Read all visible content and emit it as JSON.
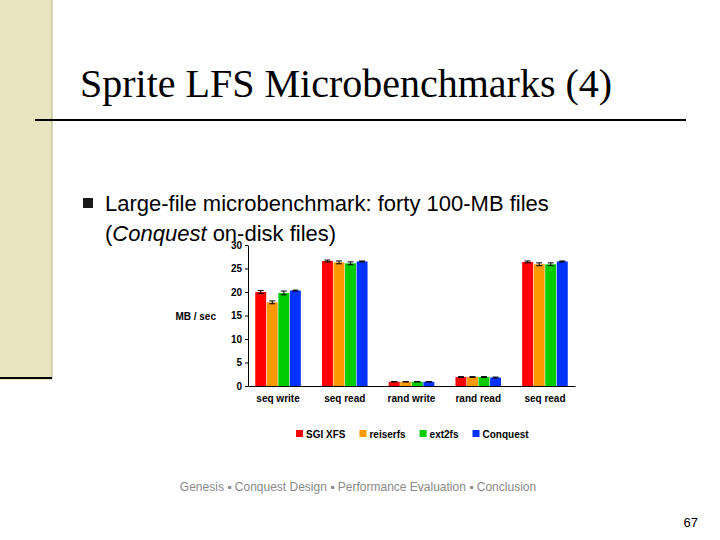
{
  "slide": {
    "title": "Sprite LFS Microbenchmarks (4)",
    "bullet": [
      [
        {
          "text": "Large-file microbenchmark:  forty 100-MB files"
        }
      ],
      [
        {
          "text": "("
        },
        {
          "text": "Conquest",
          "italic": true
        },
        {
          "text": " on-disk files)"
        }
      ]
    ],
    "footer": "Genesis ▪ Conquest Design ▪ Performance Evaluation ▪ Conclusion",
    "page": 67
  },
  "chart_data": {
    "type": "bar",
    "y_label": "MB / sec",
    "categories": [
      "seq write",
      "seq read",
      "rand write",
      "rand read",
      "seq read"
    ],
    "series": [
      {
        "name": "SGI XFS",
        "color": "#ff0000",
        "values": [
          20.0,
          26.6,
          0.9,
          1.9,
          26.4
        ],
        "errors": [
          0.3,
          0.2,
          0.05,
          0.1,
          0.2
        ]
      },
      {
        "name": "reiserfs",
        "color": "#ff9900",
        "values": [
          17.8,
          26.3,
          0.9,
          1.9,
          25.9
        ],
        "errors": [
          0.3,
          0.3,
          0.05,
          0.1,
          0.3
        ]
      },
      {
        "name": "ext2fs",
        "color": "#00cc00",
        "values": [
          19.8,
          26.1,
          0.9,
          1.9,
          25.9
        ],
        "errors": [
          0.4,
          0.3,
          0.05,
          0.1,
          0.3
        ]
      },
      {
        "name": "Conquest",
        "color": "#0033ff",
        "values": [
          20.3,
          26.5,
          0.9,
          1.8,
          26.5
        ],
        "errors": [
          0.1,
          0.1,
          0.05,
          0.1,
          0.1
        ]
      }
    ],
    "ylim": [
      0,
      30
    ],
    "yticks": [
      0,
      5,
      10,
      15,
      20,
      25,
      30
    ],
    "grid": false,
    "legend": "bottom"
  }
}
